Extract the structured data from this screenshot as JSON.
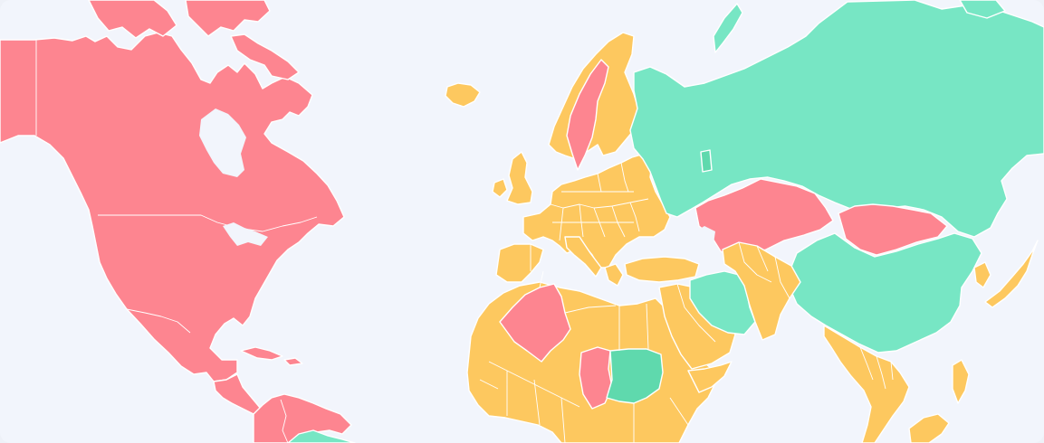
{
  "map": {
    "colors": {
      "background": "#f2f5fc",
      "red": "#fd8590",
      "yellow": "#fdc85f",
      "green": "#77e6c4",
      "green_dark": "#5fd9ad",
      "border": "#ffffff"
    }
  }
}
